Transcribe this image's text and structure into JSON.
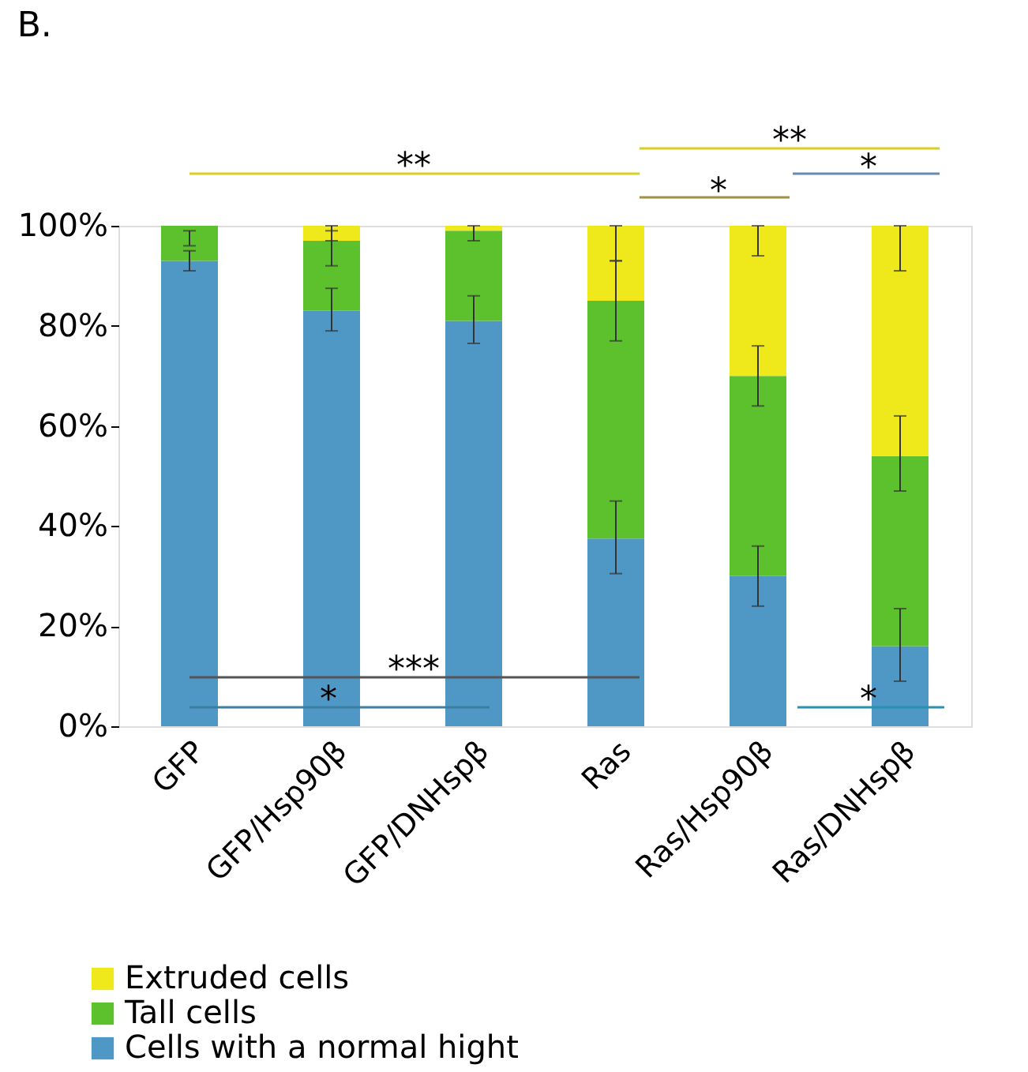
{
  "chart_data": {
    "type": "bar",
    "title": "B.",
    "stacked": true,
    "categories": [
      "GFP",
      "GFP/Hsp90β",
      "GFP/DNHspβ",
      "Ras",
      "Ras/Hsp90β",
      "Ras/DNHspβ"
    ],
    "series": [
      {
        "name": "Cells with a normal hight",
        "color": "#4f98c6",
        "values": [
          93,
          83,
          81,
          37.5,
          30,
          16
        ],
        "errors": [
          [
            91,
            95
          ],
          [
            79,
            87.5
          ],
          [
            76.5,
            86
          ],
          [
            30.5,
            45
          ],
          [
            24,
            36
          ],
          [
            9,
            23.5
          ]
        ]
      },
      {
        "name": "Tall cells",
        "color": "#5dc12e",
        "values": [
          7,
          14,
          18,
          47.5,
          40,
          38
        ],
        "errors": [
          [
            96,
            99
          ],
          [
            92,
            99
          ],
          [
            97,
            100
          ],
          [
            77,
            93
          ],
          [
            64,
            76
          ],
          [
            47,
            62
          ]
        ]
      },
      {
        "name": "Extruded cells",
        "color": "#efe81a",
        "values": [
          0,
          3,
          1,
          15,
          30,
          46
        ],
        "errors": [
          null,
          [
            97,
            100
          ],
          null,
          [
            93,
            100
          ],
          [
            94,
            100
          ],
          [
            91,
            100
          ]
        ]
      }
    ],
    "ylim": [
      0,
      100
    ],
    "yticks": [
      {
        "value": 0,
        "label": "0%"
      },
      {
        "value": 20,
        "label": "20%"
      },
      {
        "value": 40,
        "label": "40%"
      },
      {
        "value": 60,
        "label": "60%"
      },
      {
        "value": 80,
        "label": "80%"
      },
      {
        "value": 100,
        "label": "100%"
      }
    ],
    "grid": false,
    "legend": "bottom",
    "annotations": [
      "**",
      "**",
      "*",
      "*",
      "***",
      "*",
      "*"
    ]
  }
}
